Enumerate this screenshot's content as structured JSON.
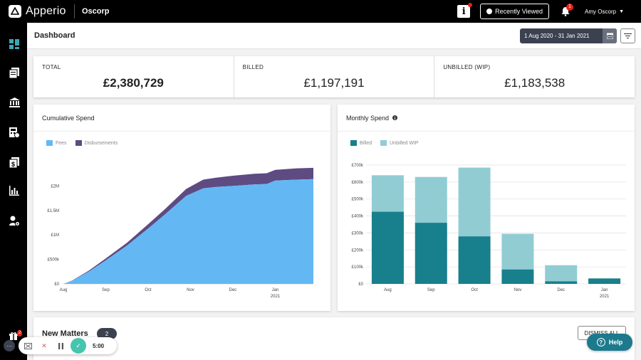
{
  "app": {
    "name": "Apperio",
    "org": "Oscorp"
  },
  "topbar": {
    "info_label": "i",
    "recently_viewed": "Recently Viewed",
    "notification_count": "1",
    "user_name": "Amy Oscorp",
    "user_caret": "▼"
  },
  "sidebar": {
    "items": [
      "dashboard",
      "matters",
      "firms",
      "invoices",
      "budgets",
      "reports",
      "users"
    ]
  },
  "header": {
    "title": "Dashboard",
    "date_range": "1 Aug 2020 - 31 Jan 2021"
  },
  "kpis": [
    {
      "label": "TOTAL",
      "value": "£2,380,729"
    },
    {
      "label": "BILLED",
      "value": "£1,197,191"
    },
    {
      "label": "UNBILLED (WIP)",
      "value": "£1,183,538"
    }
  ],
  "cumulative": {
    "title": "Cumulative Spend",
    "legend": [
      {
        "name": "Fees",
        "color": "#63b8f4"
      },
      {
        "name": "Disbursements",
        "color": "#5e4b82"
      }
    ]
  },
  "monthly": {
    "title": "Monthly Spend",
    "legend": [
      {
        "name": "Billed",
        "color": "#187f8c"
      },
      {
        "name": "Unbilled WIP",
        "color": "#91ccd3"
      }
    ]
  },
  "chart_data": [
    {
      "type": "area",
      "title": "Cumulative Spend",
      "stacked": true,
      "x_ticks": [
        "Aug",
        "Sep",
        "Oct",
        "Nov",
        "Dec",
        "Jan"
      ],
      "x_sub_label": "2021",
      "y_ticks": [
        "£0",
        "£500k",
        "£1M",
        "£1.5M",
        "£2M"
      ],
      "ylim": [
        0,
        2500000
      ],
      "x_range": [
        0,
        5.9
      ],
      "x": [
        0,
        0.2,
        0.6,
        1.0,
        1.5,
        2.0,
        2.4,
        2.9,
        3.3,
        3.6,
        4.0,
        4.5,
        4.8,
        5.0,
        5.5,
        5.9
      ],
      "series": [
        {
          "name": "Fees",
          "values": [
            0,
            60000,
            250000,
            480000,
            780000,
            1130000,
            1420000,
            1800000,
            1950000,
            1980000,
            2000000,
            2030000,
            2040000,
            2110000,
            2130000,
            2140000
          ]
        },
        {
          "name": "Disbursements",
          "values": [
            0,
            5000,
            20000,
            40000,
            60000,
            90000,
            110000,
            140000,
            180000,
            190000,
            210000,
            220000,
            220000,
            220000,
            230000,
            230000
          ]
        }
      ],
      "grid": false
    },
    {
      "type": "bar",
      "title": "Monthly Spend",
      "stacked": true,
      "categories": [
        "Aug",
        "Sep",
        "Oct",
        "Nov",
        "Dec",
        "Jan"
      ],
      "x_sub_label": "2021",
      "y_ticks": [
        "£0",
        "£100k",
        "£200k",
        "£300k",
        "£400k",
        "£500k",
        "£600k",
        "£700k"
      ],
      "ylim": [
        0,
        700000
      ],
      "series": [
        {
          "name": "Billed",
          "values": [
            425000,
            360000,
            280000,
            85000,
            15000,
            32000
          ]
        },
        {
          "name": "Unbilled WIP",
          "values": [
            215000,
            270000,
            405000,
            210000,
            95000,
            0
          ]
        }
      ],
      "grid": true
    }
  ],
  "matters": {
    "title": "New Matters",
    "count": "2",
    "dismiss_label": "DISMISS ALL"
  },
  "help": {
    "label": "Help"
  },
  "recorder": {
    "time": "5:00",
    "badge": "2"
  }
}
